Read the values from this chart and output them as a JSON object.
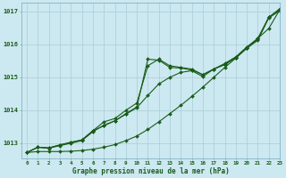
{
  "background_color": "#cce8f0",
  "grid_color": "#aaccd8",
  "line_color": "#1a5c1a",
  "text_color": "#1a5c1a",
  "xlabel": "Graphe pression niveau de la mer (hPa)",
  "xlim": [
    -0.5,
    23
  ],
  "ylim": [
    1012.55,
    1017.25
  ],
  "yticks": [
    1013,
    1014,
    1015,
    1016,
    1017
  ],
  "xticks": [
    0,
    1,
    2,
    3,
    4,
    5,
    6,
    7,
    8,
    9,
    10,
    11,
    12,
    13,
    14,
    15,
    16,
    17,
    18,
    19,
    20,
    21,
    22,
    23
  ],
  "series1": [
    1012.72,
    1012.88,
    1012.86,
    1012.95,
    1013.03,
    1013.1,
    1013.38,
    1013.53,
    1013.68,
    1013.9,
    1014.1,
    1015.55,
    1015.52,
    1015.3,
    1015.28,
    1015.22,
    1015.08,
    1015.25,
    1015.38,
    1015.6,
    1015.9,
    1016.15,
    1016.82,
    1017.05
  ],
  "series2": [
    1012.72,
    1012.88,
    1012.86,
    1012.95,
    1013.03,
    1013.1,
    1013.38,
    1013.65,
    1013.75,
    1014.0,
    1014.22,
    1015.35,
    1015.55,
    1015.35,
    1015.3,
    1015.25,
    1015.08,
    1015.25,
    1015.4,
    1015.6,
    1015.88,
    1016.12,
    1016.8,
    1017.02
  ],
  "series3": [
    1012.72,
    1012.88,
    1012.85,
    1012.93,
    1013.0,
    1013.08,
    1013.35,
    1013.55,
    1013.68,
    1013.88,
    1014.08,
    1014.45,
    1014.8,
    1015.0,
    1015.15,
    1015.2,
    1015.02,
    1015.25,
    1015.42,
    1015.62,
    1015.92,
    1016.18,
    1016.82,
    1017.08
  ],
  "series4": [
    1012.72,
    1012.75,
    1012.75,
    1012.75,
    1012.76,
    1012.78,
    1012.82,
    1012.88,
    1012.96,
    1013.08,
    1013.22,
    1013.42,
    1013.65,
    1013.9,
    1014.15,
    1014.42,
    1014.7,
    1015.0,
    1015.3,
    1015.58,
    1015.88,
    1016.18,
    1016.48,
    1017.05
  ]
}
